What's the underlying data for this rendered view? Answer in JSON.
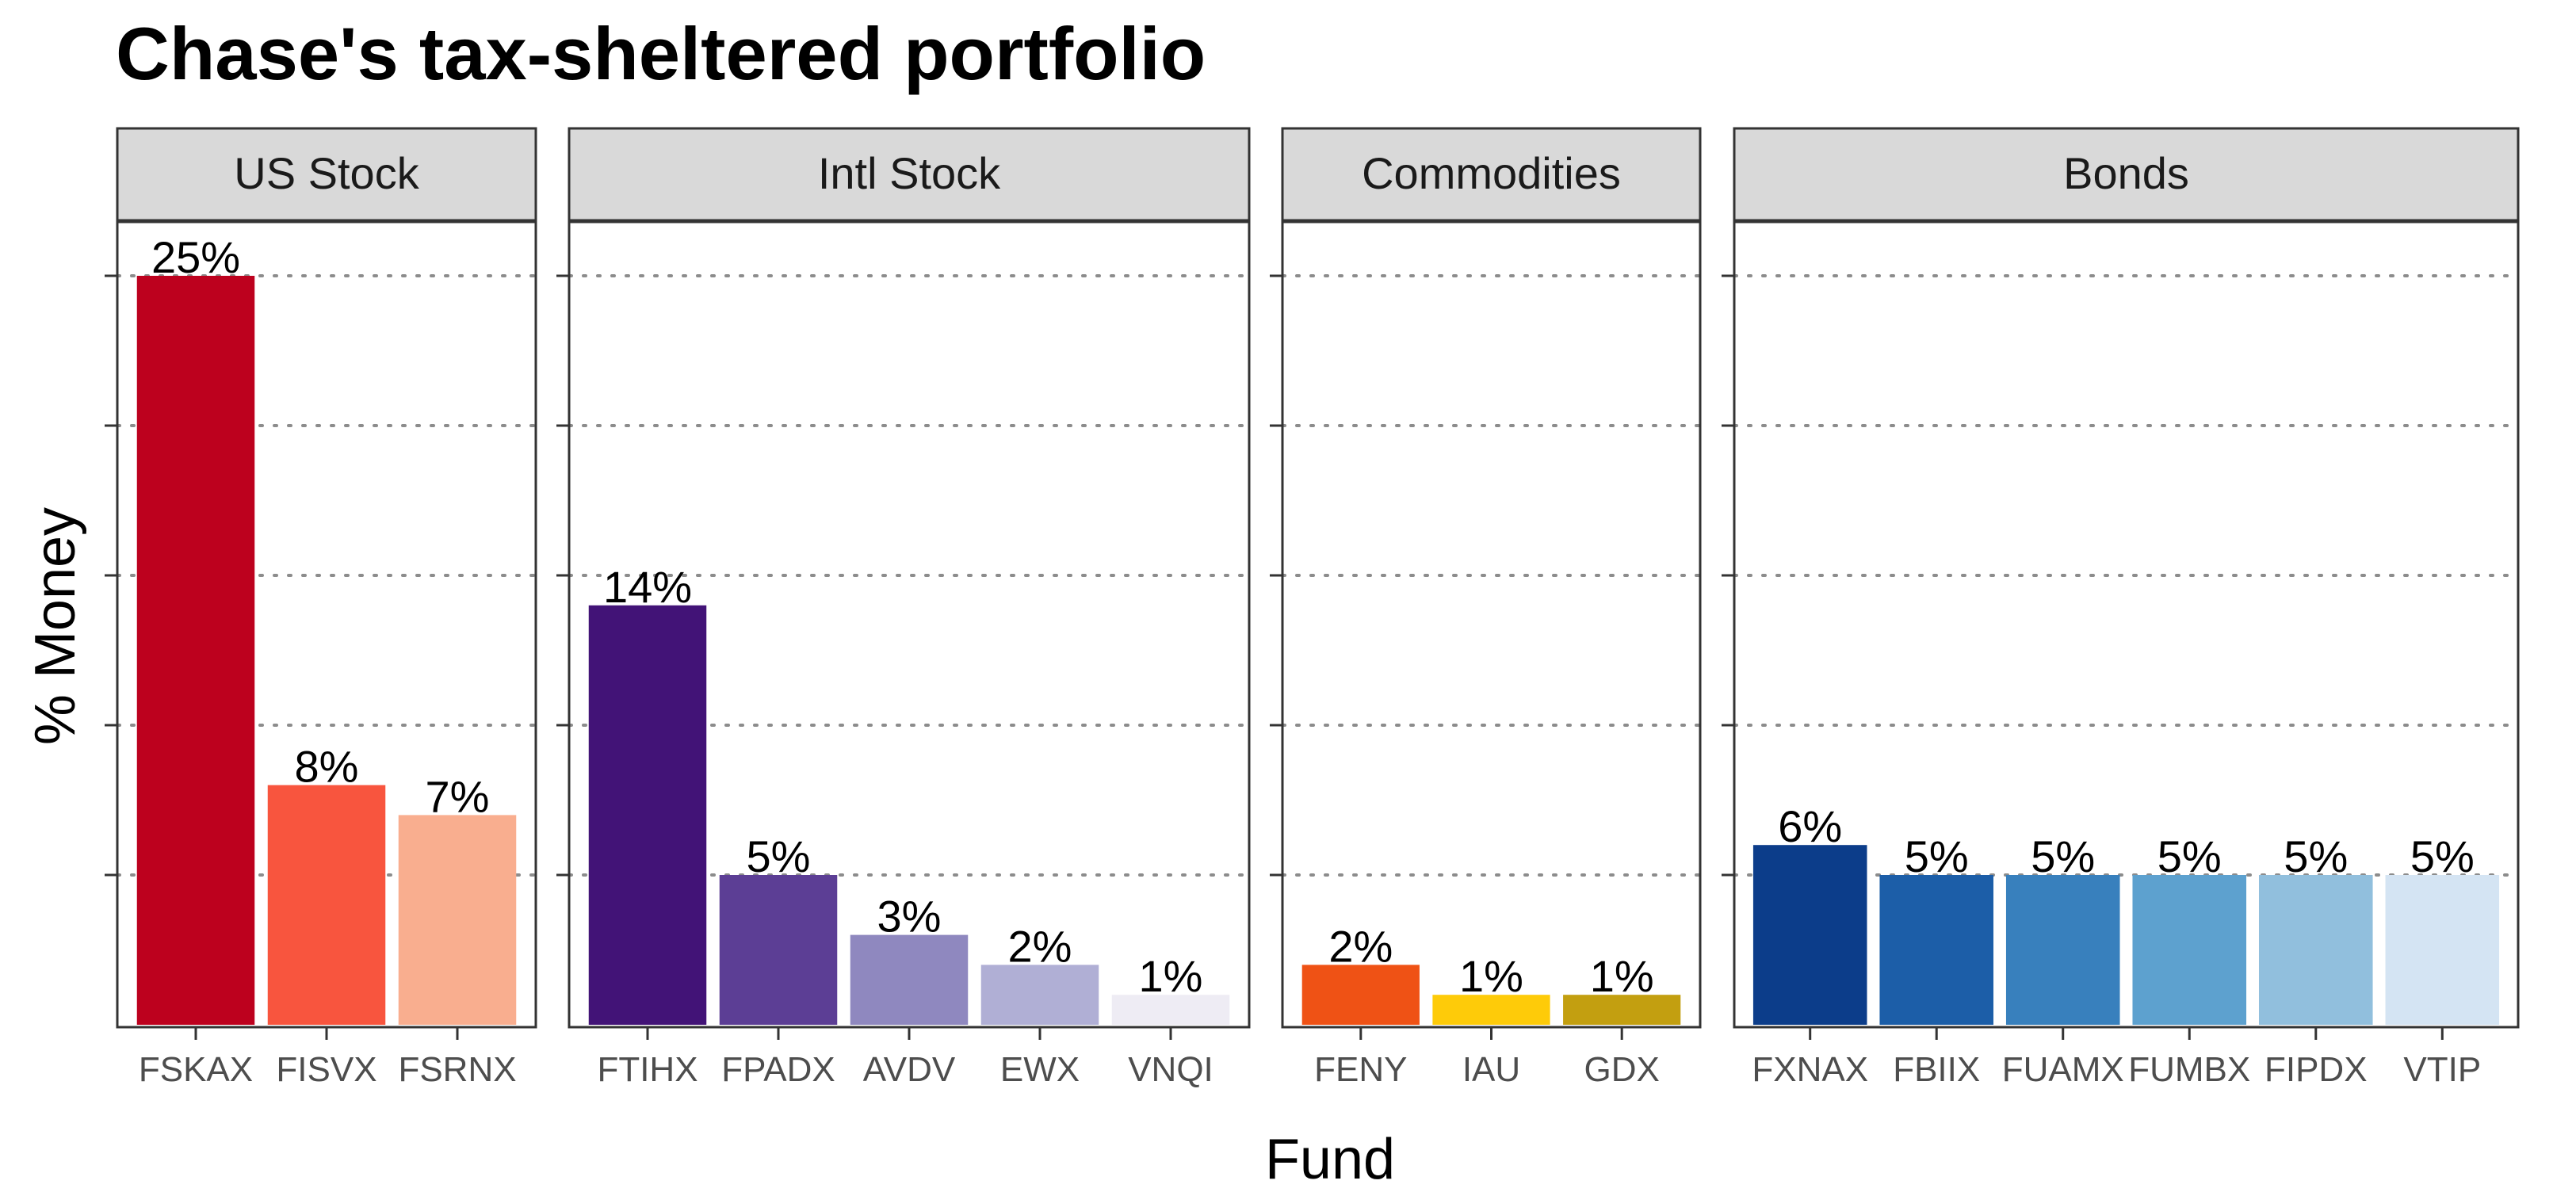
{
  "chart_data": {
    "type": "bar",
    "title": "Chase's tax-sheltered portfolio",
    "xlabel": "Fund",
    "ylabel": "% Money",
    "ylim": [
      0,
      25
    ],
    "grid": "horizontal dotted",
    "facets": [
      {
        "name": "US Stock",
        "categories": [
          "FSKAX",
          "FISVX",
          "FSRNX"
        ],
        "values": [
          25,
          8,
          7
        ],
        "labels": [
          "25%",
          "8%",
          "7%"
        ],
        "colors": [
          "#bd011e",
          "#f8553e",
          "#f9ae8f"
        ]
      },
      {
        "name": "Intl Stock",
        "categories": [
          "FTIHX",
          "FPADX",
          "AVDV",
          "EWX",
          "VNQI"
        ],
        "values": [
          14,
          5,
          3,
          2,
          1
        ],
        "labels": [
          "14%",
          "5%",
          "3%",
          "2%",
          "1%"
        ],
        "colors": [
          "#421377",
          "#5c3e95",
          "#8f88bf",
          "#b0afd5",
          "#eeecf4"
        ]
      },
      {
        "name": "Commodities",
        "categories": [
          "FENY",
          "IAU",
          "GDX"
        ],
        "values": [
          2,
          1,
          1
        ],
        "labels": [
          "2%",
          "1%",
          "1%"
        ],
        "colors": [
          "#ef5215",
          "#fecb09",
          "#c39f10"
        ]
      },
      {
        "name": "Bonds",
        "categories": [
          "FXNAX",
          "FBIIX",
          "FUAMX",
          "FUMBX",
          "FIPDX",
          "VTIP"
        ],
        "values": [
          6,
          5,
          5,
          5,
          5,
          5
        ],
        "labels": [
          "6%",
          "5%",
          "5%",
          "5%",
          "5%",
          "5%"
        ],
        "colors": [
          "#0c3d8a",
          "#1c5ea8",
          "#3880bd",
          "#5da1cf",
          "#91bfdd",
          "#d4e4f3"
        ]
      }
    ]
  }
}
